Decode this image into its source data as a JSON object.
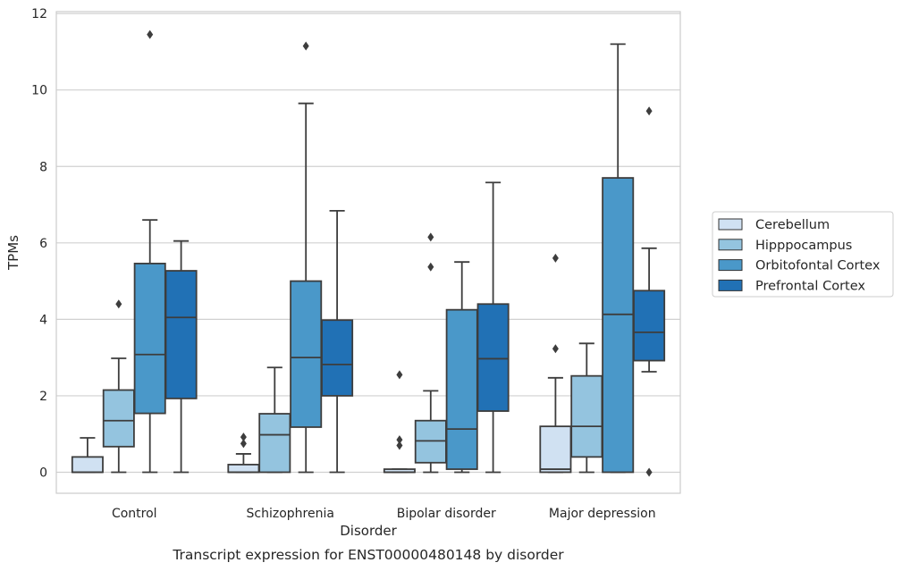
{
  "chart_data": {
    "type": "box",
    "title": "",
    "caption": "Transcript expression for ENST00000480148 by disorder",
    "xlabel": "Disorder",
    "ylabel": "TPMs",
    "ylim": [
      -0.55,
      12.05
    ],
    "yticks": [
      0,
      2,
      4,
      6,
      8,
      10,
      12
    ],
    "grid": true,
    "legend_position": "right",
    "categories": [
      "Control",
      "Schizophrenia",
      "Bipolar disorder",
      "Major depression"
    ],
    "series": [
      {
        "name": "Cerebellum",
        "color": "#d0e1f2",
        "boxes": [
          {
            "whisker_low": 0,
            "q1": 0,
            "median": 0,
            "q3": 0.4,
            "whisker_high": 0.9,
            "outliers": []
          },
          {
            "whisker_low": 0,
            "q1": 0,
            "median": 0,
            "q3": 0.2,
            "whisker_high": 0.48,
            "outliers": [
              0.75,
              0.92
            ]
          },
          {
            "whisker_low": 0,
            "q1": 0,
            "median": 0,
            "q3": 0.08,
            "whisker_high": 0.08,
            "outliers": [
              0.7,
              0.85,
              2.55
            ]
          },
          {
            "whisker_low": 0,
            "q1": 0,
            "median": 0.08,
            "q3": 1.2,
            "whisker_high": 2.47,
            "outliers": [
              3.23,
              5.6
            ]
          }
        ]
      },
      {
        "name": "Hipppocampus",
        "color": "#94c4df",
        "boxes": [
          {
            "whisker_low": 0,
            "q1": 0.67,
            "median": 1.35,
            "q3": 2.15,
            "whisker_high": 2.98,
            "outliers": [
              4.4
            ]
          },
          {
            "whisker_low": 0,
            "q1": 0,
            "median": 0.98,
            "q3": 1.53,
            "whisker_high": 2.74,
            "outliers": []
          },
          {
            "whisker_low": 0,
            "q1": 0.25,
            "median": 0.82,
            "q3": 1.35,
            "whisker_high": 2.13,
            "outliers": [
              5.37,
              6.15
            ]
          },
          {
            "whisker_low": 0,
            "q1": 0.4,
            "median": 1.2,
            "q3": 2.52,
            "whisker_high": 3.37,
            "outliers": []
          }
        ]
      },
      {
        "name": "Orbitofontal Cortex",
        "color": "#4a98c9",
        "boxes": [
          {
            "whisker_low": 0,
            "q1": 1.54,
            "median": 3.08,
            "q3": 5.46,
            "whisker_high": 6.6,
            "outliers": [
              11.45
            ]
          },
          {
            "whisker_low": 0,
            "q1": 1.18,
            "median": 3.0,
            "q3": 5.0,
            "whisker_high": 9.65,
            "outliers": [
              11.15
            ]
          },
          {
            "whisker_low": 0,
            "q1": 0.08,
            "median": 1.13,
            "q3": 4.25,
            "whisker_high": 5.5,
            "outliers": []
          },
          {
            "whisker_low": 0,
            "q1": 0,
            "median": 4.13,
            "q3": 7.7,
            "whisker_high": 11.2,
            "outliers": []
          }
        ]
      },
      {
        "name": "Prefrontal Cortex",
        "color": "#2171b5",
        "boxes": [
          {
            "whisker_low": 0,
            "q1": 1.93,
            "median": 4.05,
            "q3": 5.27,
            "whisker_high": 6.05,
            "outliers": []
          },
          {
            "whisker_low": 0,
            "q1": 2.0,
            "median": 2.82,
            "q3": 3.98,
            "whisker_high": 6.84,
            "outliers": []
          },
          {
            "whisker_low": 0,
            "q1": 1.6,
            "median": 2.97,
            "q3": 4.4,
            "whisker_high": 7.58,
            "outliers": []
          },
          {
            "whisker_low": 2.63,
            "q1": 2.92,
            "median": 3.66,
            "q3": 4.75,
            "whisker_high": 5.86,
            "outliers": [
              0,
              9.45
            ]
          }
        ]
      }
    ]
  }
}
